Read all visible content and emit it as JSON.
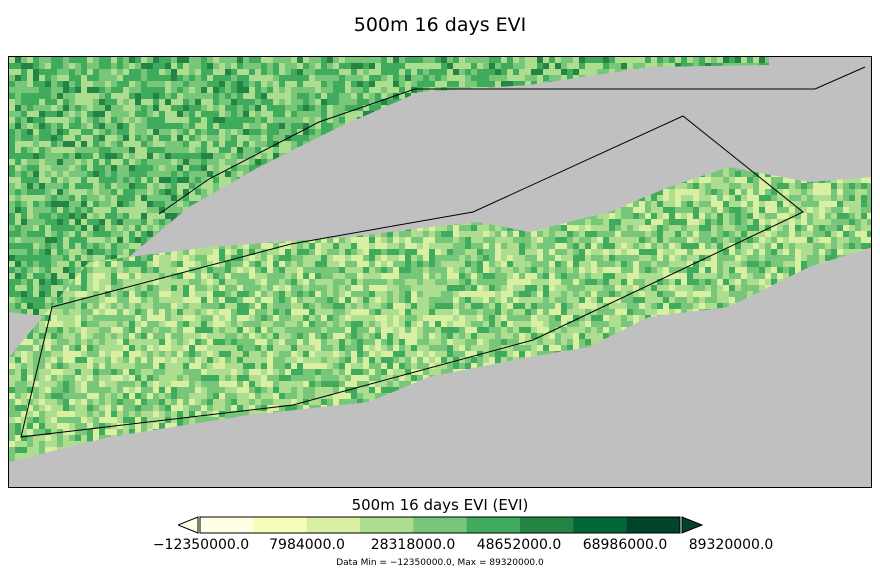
{
  "title": "500m 16 days EVI",
  "colorbar": {
    "title": "500m 16 days EVI (EVI)",
    "colors": [
      "#ffffe5",
      "#f7fcb9",
      "#d9f0a3",
      "#addd8e",
      "#78c679",
      "#41ab5d",
      "#238443",
      "#006837",
      "#004529"
    ],
    "under_color": "#ffffe5",
    "over_color": "#004529",
    "tick_labels": [
      "−12350000.0",
      "7984000.0",
      "28318000.0",
      "48652000.0",
      "68986000.0",
      "89320000.0"
    ]
  },
  "data_range_text": "Data Min = −12350000.0, Max = 89320000.0",
  "map": {
    "background_color": "#c0c0c0",
    "outline_color": "#000000"
  }
}
